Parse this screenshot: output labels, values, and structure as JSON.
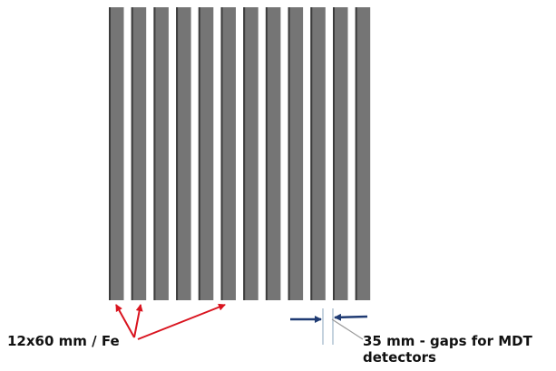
{
  "labels": {
    "plate": "12x60 mm / Fe",
    "gap_line1": "35 mm - gaps for MDT",
    "gap_line2": "detectors"
  },
  "plates": {
    "count": 12
  },
  "colors": {
    "plate_fill": "#757575",
    "plate_edge": "#3c3c3c",
    "arrow_red": "#d9141f",
    "arrow_blue": "#1f3b73",
    "guide_line": "#9db3c9",
    "text": "#111111"
  }
}
